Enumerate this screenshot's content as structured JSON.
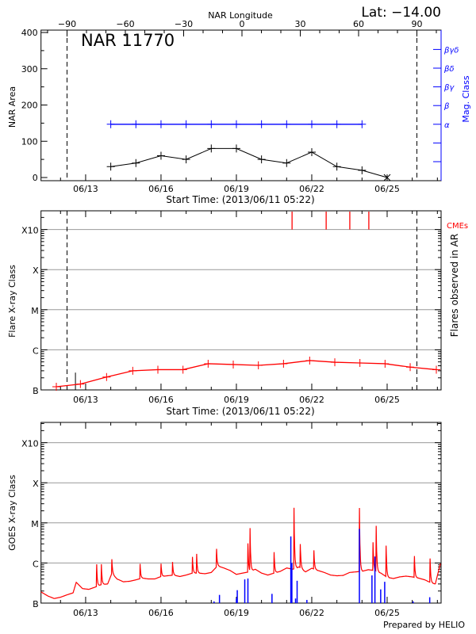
{
  "header": {
    "lat_label": "Lat: −14.00",
    "region_title": "NAR 11770",
    "credit": "Prepared by HELIO"
  },
  "colors": {
    "flux": "#ff0000",
    "mag_class": "#0000ff",
    "ar_flares": "#0000ff",
    "cme": "#ff0000",
    "grid": "#999999",
    "axes": "#000000"
  },
  "chart_data": [
    {
      "type": "line",
      "panel": "nar",
      "top_axis_label": "NAR Longitude",
      "top_axis_ticks": [
        -90,
        -60,
        -30,
        0,
        30,
        60,
        90
      ],
      "limb_lines_longitude": [
        -90,
        90
      ],
      "ylabel": "NAR Area",
      "ylim": [
        0,
        400
      ],
      "yticks": [
        0,
        100,
        200,
        300,
        400
      ],
      "xlabel": "Start Time: (2013/06/11 05:22)",
      "xlim": [
        "2013-06-11T05:22",
        "2013-06-27T03:30"
      ],
      "xtick_dates": [
        "2013-06-13T00:00",
        "2013-06-16T00:00",
        "2013-06-19T00:00",
        "2013-06-22T00:00",
        "2013-06-25T00:00"
      ],
      "xtick_labels": [
        "06/13",
        "06/16",
        "06/19",
        "06/22",
        "06/25"
      ],
      "area": {
        "x": [
          "2013-06-14T00:00",
          "2013-06-15T00:00",
          "2013-06-16T00:00",
          "2013-06-17T00:00",
          "2013-06-18T00:00",
          "2013-06-19T00:00",
          "2013-06-20T00:00",
          "2013-06-21T00:00",
          "2013-06-22T00:00",
          "2013-06-23T00:00",
          "2013-06-24T00:00",
          "2013-06-25T00:00"
        ],
        "values": [
          30,
          40,
          60,
          50,
          80,
          80,
          50,
          40,
          70,
          30,
          20,
          0
        ]
      },
      "mag_class_axis": {
        "label": "Mag. Class",
        "levels": [
          "",
          "",
          "α",
          "β",
          "βγ",
          "βδ",
          "βγδ"
        ]
      },
      "mag_class": {
        "x": [
          "2013-06-14T00:00",
          "2013-06-15T00:00",
          "2013-06-16T00:00",
          "2013-06-17T00:00",
          "2013-06-18T00:00",
          "2013-06-19T00:00",
          "2013-06-20T00:00",
          "2013-06-21T00:00",
          "2013-06-22T00:00",
          "2013-06-23T00:00",
          "2013-06-24T00:00"
        ],
        "values": [
          "α",
          "α",
          "α",
          "α",
          "α",
          "α",
          "α",
          "α",
          "α",
          "α",
          "α"
        ]
      }
    },
    {
      "type": "line",
      "panel": "flares",
      "ylabel": "Flare X-ray Class",
      "right_label": "Flares observed in AR",
      "cme_label": "CMEs",
      "yscale": "log",
      "ylim_flux": [
        1e-07,
        0.003
      ],
      "yticks_flux": [
        1e-07,
        1e-06,
        1e-05,
        0.0001,
        0.001
      ],
      "ytick_labels": [
        "B",
        "C",
        "M",
        "X",
        "X10"
      ],
      "grid": true,
      "xlabel": "Start Time: (2013/06/11 05:22)",
      "xtick_labels": [
        "06/13",
        "06/16",
        "06/19",
        "06/22",
        "06/25"
      ],
      "limb_lines_longitude": [
        -90,
        90
      ],
      "flare_flux": {
        "x": [
          "2013-06-11T20:00",
          "2013-06-12T19:00",
          "2013-06-13T20:00",
          "2013-06-14T21:00",
          "2013-06-15T21:00",
          "2013-06-16T21:00",
          "2013-06-17T21:00",
          "2013-06-18T21:00",
          "2013-06-19T21:00",
          "2013-06-20T21:00",
          "2013-06-21T22:00",
          "2013-06-22T22:00",
          "2013-06-23T22:00",
          "2013-06-24T22:00",
          "2013-06-25T22:00",
          "2013-06-26T23:00"
        ],
        "values": [
          1.2e-07,
          1.4e-07,
          2.1e-07,
          3e-07,
          3.2e-07,
          3.2e-07,
          4.5e-07,
          4.3e-07,
          4.1e-07,
          4.5e-07,
          5.4e-07,
          4.9e-07,
          4.7e-07,
          4.5e-07,
          3.7e-07,
          3.2e-07
        ]
      },
      "flare_markers": [
        {
          "x": "2013-06-12T14:15",
          "value": 2.7e-07
        }
      ],
      "cme_times": [
        "2013-06-21T05:10",
        "2013-06-22T13:45",
        "2013-06-23T12:20",
        "2013-06-24T06:30"
      ]
    },
    {
      "type": "line",
      "panel": "goes",
      "ylabel": "GOES X-ray Class",
      "yscale": "log",
      "ylim_flux": [
        1e-07,
        0.003
      ],
      "yticks_flux": [
        1e-07,
        1e-06,
        1e-05,
        0.0001,
        0.001
      ],
      "ytick_labels": [
        "B",
        "C",
        "M",
        "X",
        "X10"
      ],
      "grid": true,
      "xtick_labels": [
        "06/13",
        "06/16",
        "06/19",
        "06/22",
        "06/25"
      ],
      "background_flux": {
        "x": [
          "2013-06-11T05:22",
          "2013-06-11T12:00",
          "2013-06-11T18:00",
          "2013-06-12T00:00",
          "2013-06-12T06:00",
          "2013-06-12T12:00",
          "2013-06-12T15:00",
          "2013-06-12T21:00",
          "2013-06-13T03:00",
          "2013-06-13T09:00",
          "2013-06-13T15:00",
          "2013-06-13T21:00",
          "2013-06-14T01:00",
          "2013-06-14T06:00",
          "2013-06-14T12:00",
          "2013-06-14T18:00",
          "2013-06-15T00:00",
          "2013-06-15T06:00",
          "2013-06-15T12:00",
          "2013-06-15T18:00",
          "2013-06-16T00:00",
          "2013-06-16T06:00",
          "2013-06-16T12:00",
          "2013-06-16T18:00",
          "2013-06-17T00:00",
          "2013-06-17T06:00",
          "2013-06-17T12:00",
          "2013-06-17T18:00",
          "2013-06-18T00:00",
          "2013-06-18T06:00",
          "2013-06-18T12:00",
          "2013-06-18T18:00",
          "2013-06-19T00:00",
          "2013-06-19T06:00",
          "2013-06-19T12:00",
          "2013-06-19T18:00",
          "2013-06-20T00:00",
          "2013-06-20T06:00",
          "2013-06-20T12:00",
          "2013-06-20T18:00",
          "2013-06-21T00:00",
          "2013-06-21T06:00",
          "2013-06-21T12:00",
          "2013-06-21T18:00",
          "2013-06-22T00:00",
          "2013-06-22T06:00",
          "2013-06-22T12:00",
          "2013-06-22T18:00",
          "2013-06-23T00:00",
          "2013-06-23T06:00",
          "2013-06-23T12:00",
          "2013-06-23T18:00",
          "2013-06-24T00:00",
          "2013-06-24T06:00",
          "2013-06-24T12:00",
          "2013-06-24T18:00",
          "2013-06-25T00:00",
          "2013-06-25T06:00",
          "2013-06-25T12:00",
          "2013-06-25T18:00",
          "2013-06-26T00:00",
          "2013-06-26T06:00",
          "2013-06-26T12:00",
          "2013-06-26T18:00",
          "2013-06-26T22:00",
          "2013-06-27T03:00"
        ],
        "values": [
          1.9e-07,
          1.5e-07,
          1.3e-07,
          1.4e-07,
          1.6e-07,
          1.8e-07,
          3.3e-07,
          2.3e-07,
          2.2e-07,
          2.5e-07,
          2.9e-07,
          3e-07,
          5.5e-07,
          4e-07,
          3.4e-07,
          3.5e-07,
          3.8e-07,
          4.2e-07,
          4e-07,
          4e-07,
          4.6e-07,
          4.8e-07,
          5e-07,
          4.6e-07,
          5e-07,
          5.6e-07,
          5.6e-07,
          5.4e-07,
          5.8e-07,
          8.5e-07,
          7.5e-07,
          6.5e-07,
          5.2e-07,
          5.6e-07,
          6e-07,
          7e-07,
          5.6e-07,
          5e-07,
          5.6e-07,
          6.2e-07,
          7.5e-07,
          7e-07,
          8e-07,
          6e-07,
          7.4e-07,
          6.5e-07,
          5.8e-07,
          5e-07,
          4.8e-07,
          4.9e-07,
          5.8e-07,
          6e-07,
          6.2e-07,
          6.8e-07,
          6.5e-07,
          5.6e-07,
          4.4e-07,
          4.1e-07,
          4.5e-07,
          4.7e-07,
          4.5e-07,
          4.2e-07,
          3.8e-07,
          3.2e-07,
          3e-07,
          1e-06
        ]
      },
      "flux_peaks": {
        "x": [
          "2013-06-13T10:30",
          "2013-06-13T15:00",
          "2013-06-14T01:00",
          "2013-06-15T04:00",
          "2013-06-16T00:00",
          "2013-06-16T11:00",
          "2013-06-17T06:00",
          "2013-06-17T10:00",
          "2013-06-18T05:00",
          "2013-06-19T11:00",
          "2013-06-19T13:00",
          "2013-06-20T12:00",
          "2013-06-21T07:00",
          "2013-06-21T13:00",
          "2013-06-22T02:00",
          "2013-06-23T21:30",
          "2013-06-24T10:30",
          "2013-06-24T13:30",
          "2013-06-24T23:00",
          "2013-06-26T02:00",
          "2013-06-26T17:00"
        ],
        "values": [
          1e-06,
          1e-06,
          1.3e-06,
          1e-06,
          1e-06,
          1.1e-06,
          1.5e-06,
          1.8e-06,
          2.4e-06,
          3.4e-06,
          8.5e-06,
          2e-06,
          2.9e-05,
          3.2e-06,
          2.2e-06,
          2.9e-05,
          3.6e-06,
          9.8e-06,
          3e-06,
          1.6e-06,
          1.4e-06
        ]
      },
      "ar_flares": {
        "x": [
          "2013-06-18T02:40",
          "2013-06-18T07:50",
          "2013-06-19T00:00",
          "2013-06-19T00:50",
          "2013-06-19T08:00",
          "2013-06-19T11:00",
          "2013-06-20T10:00",
          "2013-06-21T04:00",
          "2013-06-21T05:00",
          "2013-06-21T08:30",
          "2013-06-21T10:00",
          "2013-06-21T19:20",
          "2013-06-23T21:30",
          "2013-06-24T09:30",
          "2013-06-24T12:20",
          "2013-06-24T17:50",
          "2013-06-24T21:40",
          "2013-06-26T00:50",
          "2013-06-26T16:40"
        ],
        "values": [
          1.1e-07,
          1.6e-07,
          1.3e-07,
          2.1e-07,
          3.9e-07,
          4.1e-07,
          1.7e-07,
          4.6e-06,
          1e-06,
          1.3e-07,
          3.6e-07,
          1.2e-07,
          7.1e-06,
          4.9e-07,
          1.45e-06,
          2.2e-07,
          3.4e-07,
          1.1e-07,
          1.4e-07
        ]
      }
    }
  ]
}
